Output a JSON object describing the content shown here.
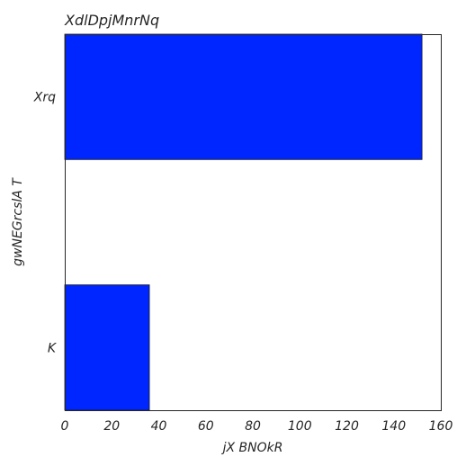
{
  "chart_data": {
    "type": "bar",
    "orientation": "horizontal",
    "title": "XdlDpjMnrNq",
    "xlabel": "jX BNOkR",
    "ylabel": "gwNEGrcslA T",
    "categories": [
      "Xrq",
      "K"
    ],
    "values": [
      152,
      36
    ],
    "xlim": [
      0,
      160
    ],
    "xticks": [
      "0",
      "20",
      "40",
      "60",
      "80",
      "100",
      "120",
      "140",
      "160"
    ],
    "grid": false,
    "bar_color": "#0026ff",
    "edge_color": "#1a1a1a",
    "frame_color": "#262626"
  }
}
